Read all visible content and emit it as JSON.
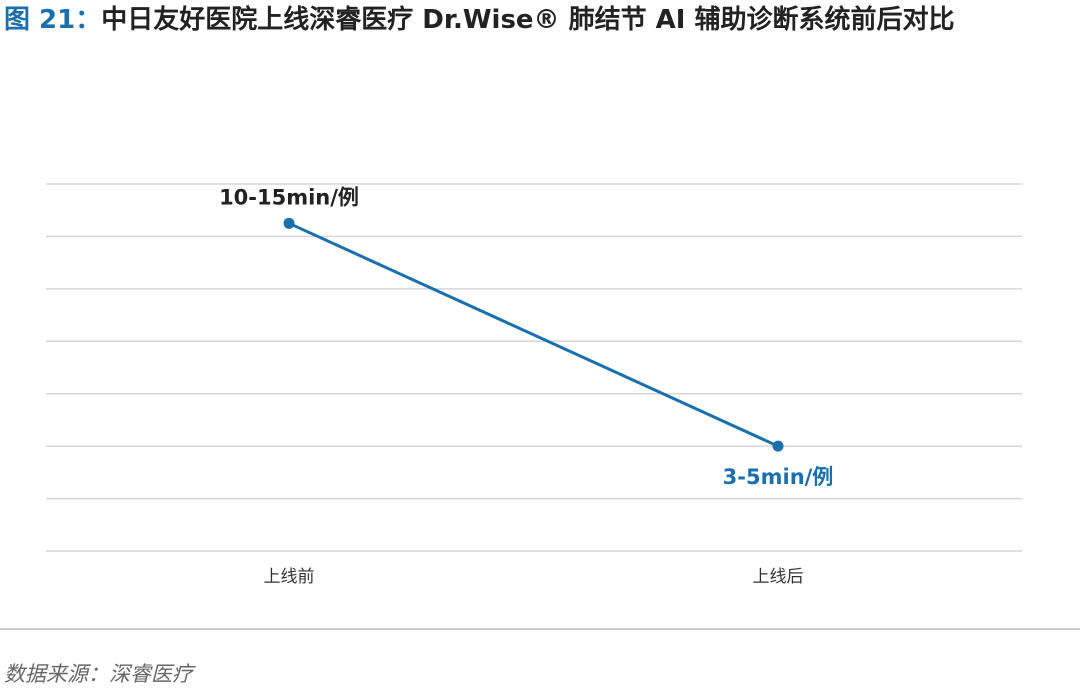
{
  "figure": {
    "label": "图 21：",
    "title": "中日友好医院上线深睿医疗 Dr.Wise® 肺结节 AI 辅助诊断系统前后对比"
  },
  "source": "数据来源：深睿医疗",
  "colors": {
    "accent": "#1a6fae",
    "grid": "#d3d7dc",
    "axis_text": "#333333",
    "label_dark": "#222222"
  },
  "chart_data": {
    "type": "line",
    "title": "",
    "xlabel": "",
    "ylabel": "",
    "categories": [
      "上线前",
      "上线后"
    ],
    "series": [
      {
        "values": [
          12.5,
          4
        ],
        "data_labels": [
          "10-15min/例",
          "3-5min/例"
        ]
      }
    ],
    "ylim": [
      0,
      14
    ],
    "grid": true,
    "y_tick_labels_visible": false,
    "legend": "none"
  }
}
